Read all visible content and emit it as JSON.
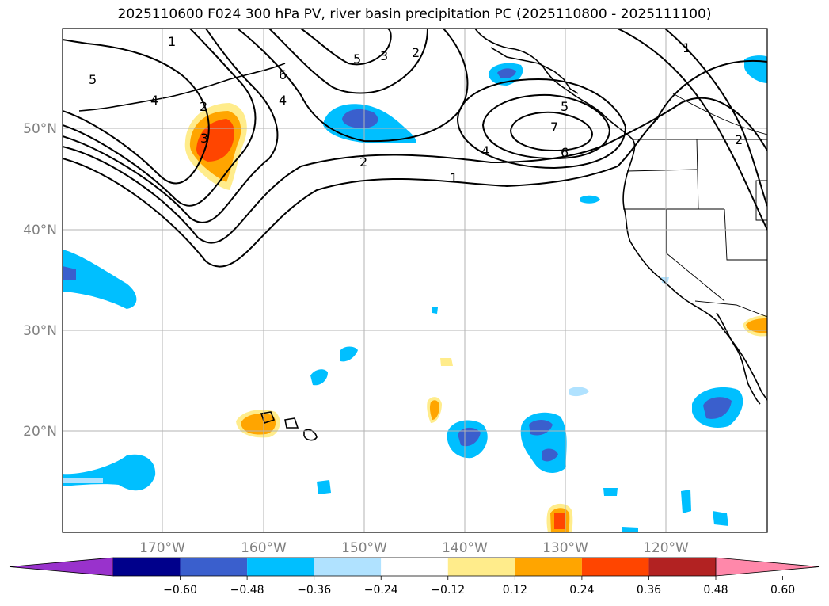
{
  "title": "2025110600 F024 300 hPa PV, river basin precipitation PC (2025110800 - 2025111100)",
  "lat_labels": [
    "50°N",
    "40°N",
    "30°N",
    "20°N"
  ],
  "lon_labels": [
    "170°W",
    "160°W",
    "150°W",
    "140°W",
    "130°W",
    "120°W"
  ],
  "contour_labels": {
    "c1_top": "1",
    "c1_mid": "1",
    "c1_right": "1",
    "c2_left": "2",
    "c2_mid": "2",
    "c2_top": "2",
    "c2_right": "2",
    "c3_left": "3",
    "c3_top": "3",
    "c4_left": "4",
    "c4_mid": "4",
    "c4_right": "4",
    "c5_left": "5",
    "c5_top": "5",
    "c5_right": "5",
    "c6_top": "6",
    "c6_right": "6",
    "c7_right": "7"
  },
  "colorbar": {
    "ticks": [
      "−0.60",
      "−0.48",
      "−0.36",
      "−0.24",
      "−0.12",
      "0.12",
      "0.24",
      "0.36",
      "0.48",
      "0.60"
    ],
    "colors": [
      "#9932cc",
      "#00008b",
      "#3a5fcd",
      "#00bfff",
      "#b0e2ff",
      "#ffffff",
      "#ffec8b",
      "#ffa500",
      "#ff4500",
      "#b22222",
      "#ff88aa"
    ]
  }
}
